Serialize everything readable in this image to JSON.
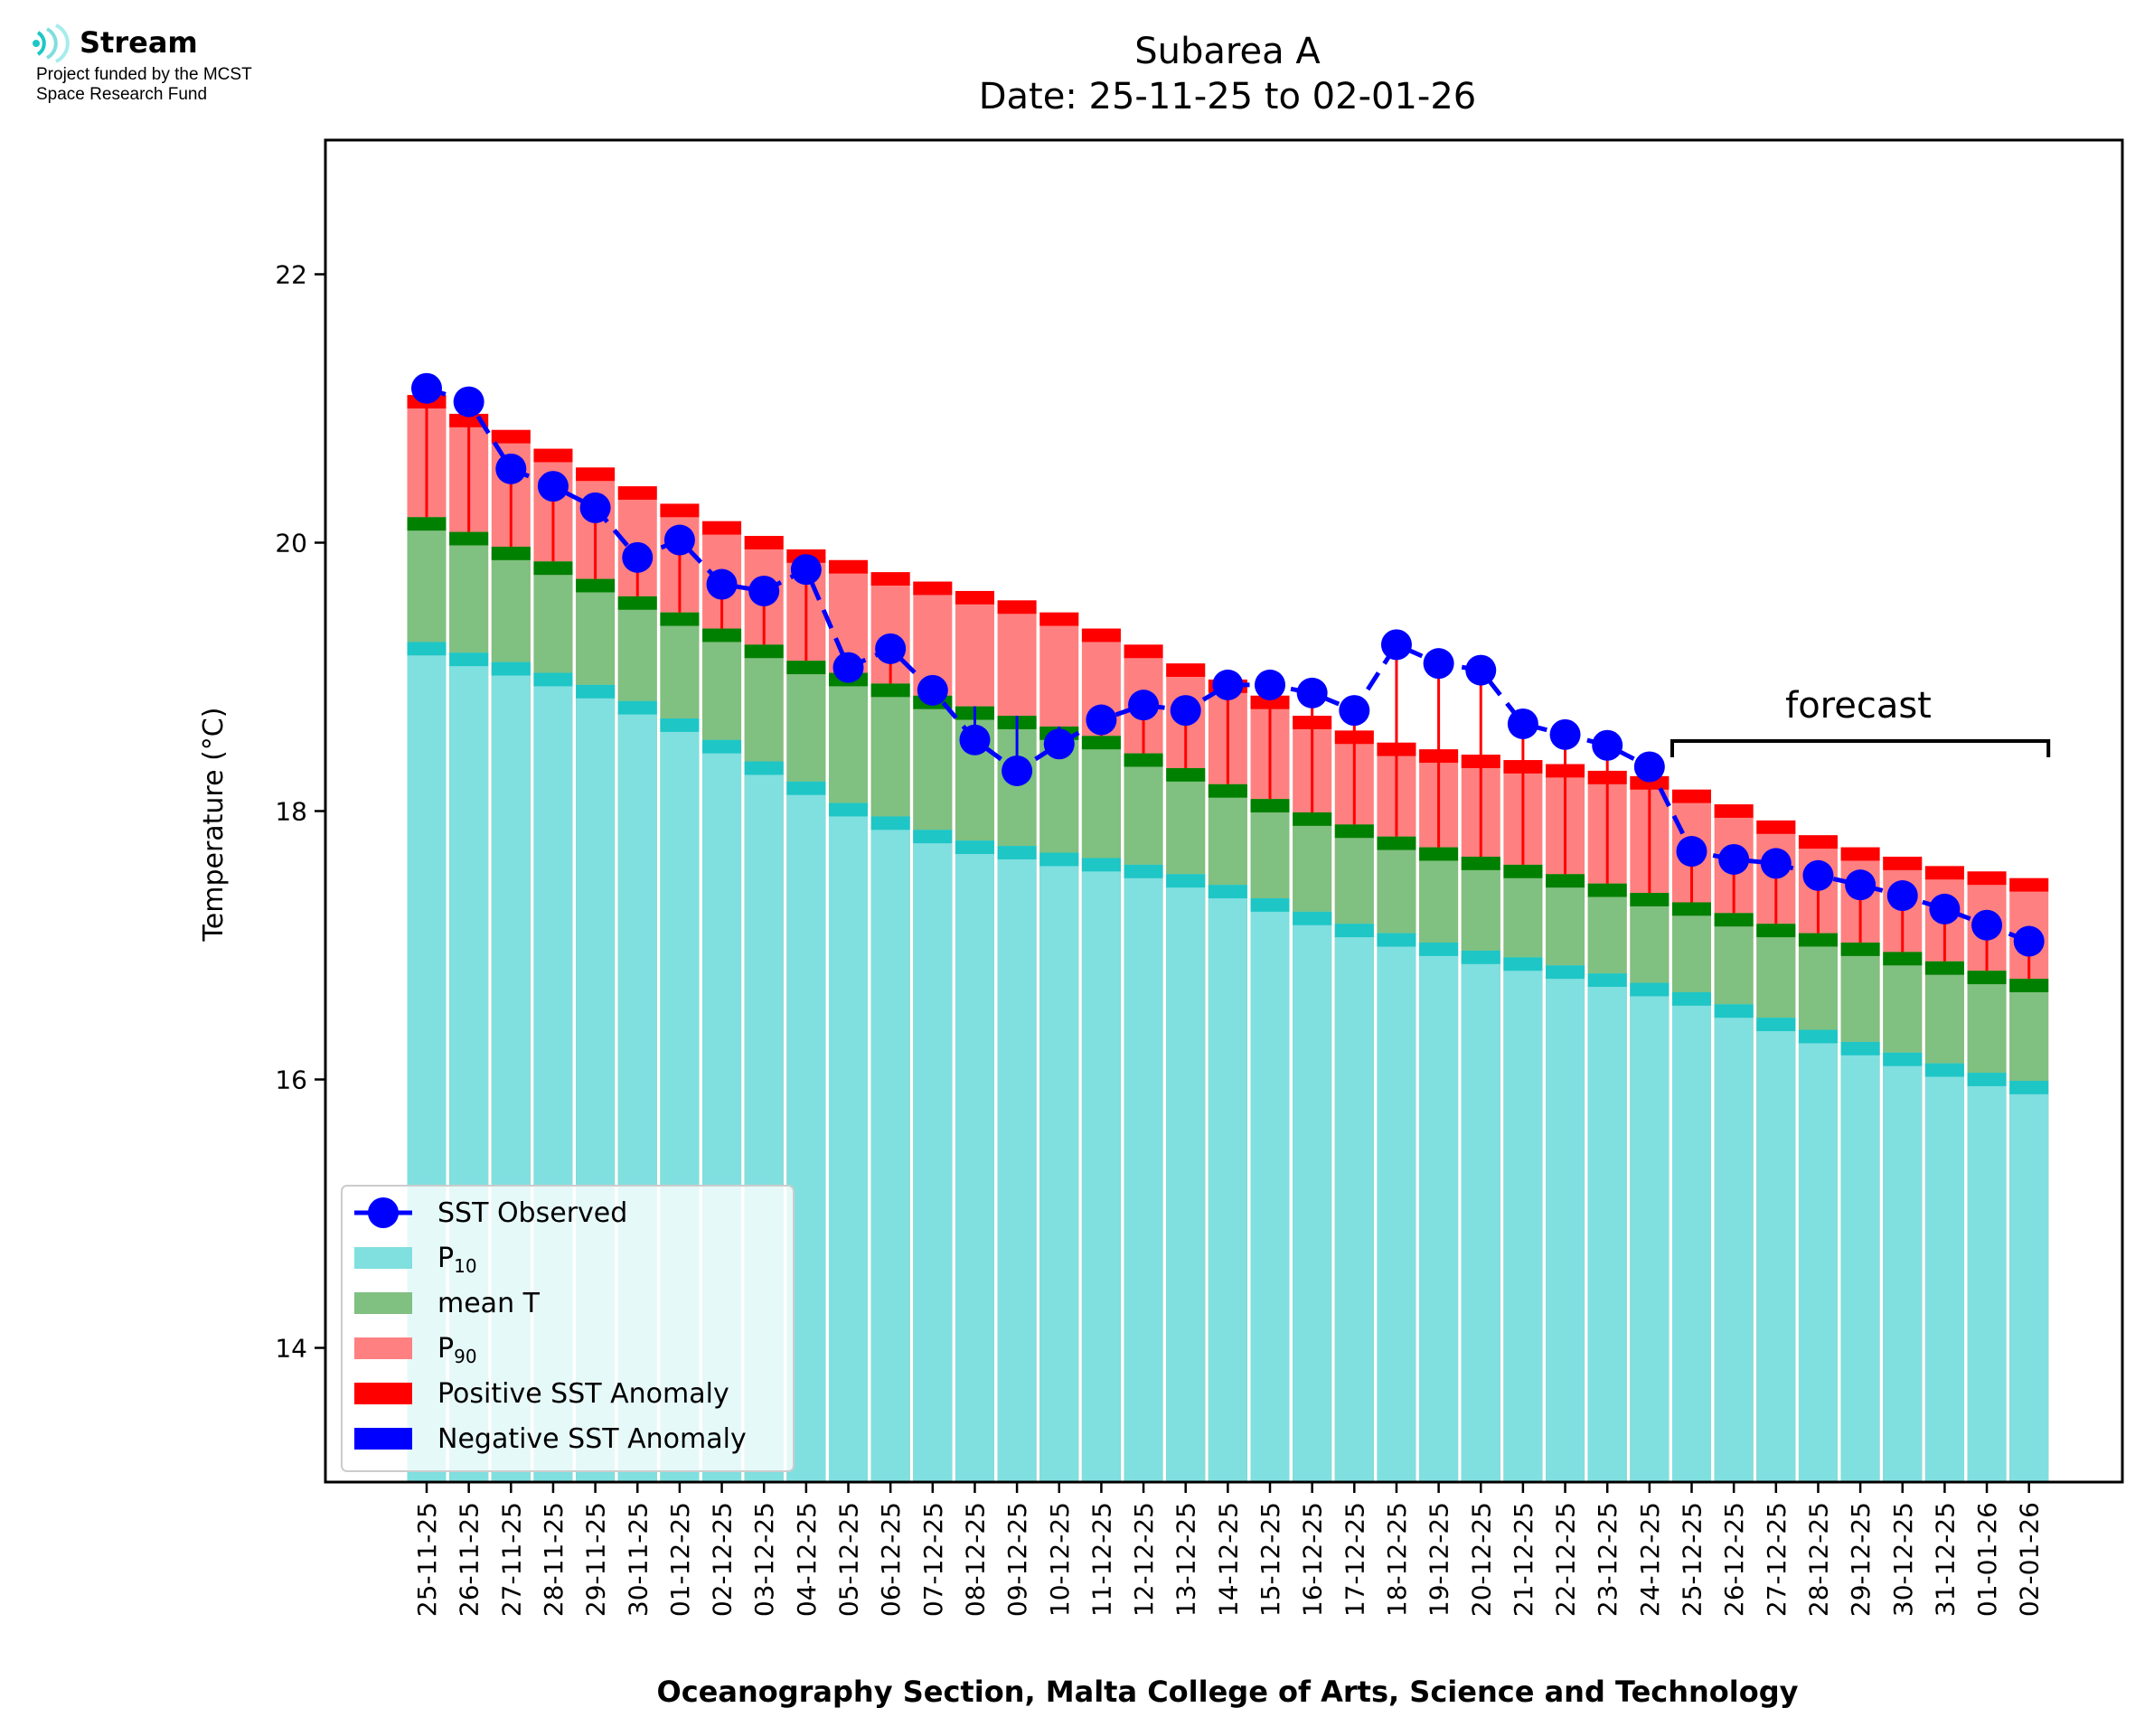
{
  "logo": {
    "name": "Stream",
    "line1": "Project funded by the MCST",
    "line2": "Space Research Fund",
    "color": "#7fdede"
  },
  "chart_data": {
    "type": "bar",
    "title": "Subarea A",
    "subtitle": "Date: 25-11-25 to 02-01-26",
    "xlabel": "Oceanography Section, Malta College of Arts, Science and Technology",
    "ylabel": "Temperature (°C)",
    "ylim": [
      13.0,
      23.0
    ],
    "yticks": [
      14,
      16,
      18,
      20,
      22
    ],
    "categories": [
      "25-11-25",
      "26-11-25",
      "27-11-25",
      "28-11-25",
      "29-11-25",
      "30-11-25",
      "01-12-25",
      "02-12-25",
      "03-12-25",
      "04-12-25",
      "05-12-25",
      "06-12-25",
      "07-12-25",
      "08-12-25",
      "09-12-25",
      "10-12-25",
      "11-12-25",
      "12-12-25",
      "13-12-25",
      "14-12-25",
      "15-12-25",
      "16-12-25",
      "17-12-25",
      "18-12-25",
      "19-12-25",
      "20-12-25",
      "21-12-25",
      "22-12-25",
      "23-12-25",
      "24-12-25",
      "25-12-25",
      "26-12-25",
      "27-12-25",
      "28-12-25",
      "29-12-25",
      "30-12-25",
      "31-12-25",
      "01-01-26",
      "02-01-26"
    ],
    "series": [
      {
        "name": "SST Observed",
        "style": "line-marker",
        "color": "#0000ff",
        "values": [
          21.15,
          21.05,
          20.55,
          20.42,
          20.26,
          19.89,
          20.02,
          19.69,
          19.64,
          19.8,
          19.07,
          19.21,
          18.9,
          18.53,
          18.3,
          18.5,
          18.68,
          18.79,
          18.75,
          18.94,
          18.94,
          18.88,
          18.75,
          19.24,
          19.1,
          19.05,
          18.65,
          18.57,
          18.49,
          18.33,
          17.7,
          17.64,
          17.61,
          17.52,
          17.45,
          17.37,
          17.27,
          17.15,
          17.03
        ]
      },
      {
        "name": "P10",
        "style": "bar",
        "color": "#80dfdf",
        "marker_color": "#1ec6c6",
        "values": [
          19.26,
          19.18,
          19.11,
          19.03,
          18.94,
          18.82,
          18.69,
          18.53,
          18.37,
          18.22,
          18.06,
          17.96,
          17.86,
          17.78,
          17.74,
          17.69,
          17.65,
          17.6,
          17.53,
          17.45,
          17.35,
          17.25,
          17.16,
          17.09,
          17.02,
          16.96,
          16.91,
          16.85,
          16.79,
          16.72,
          16.65,
          16.56,
          16.46,
          16.37,
          16.28,
          16.2,
          16.12,
          16.05,
          15.99
        ]
      },
      {
        "name": "mean T",
        "style": "bar",
        "color": "#80c080",
        "marker_color": "#008000",
        "values": [
          20.19,
          20.08,
          19.97,
          19.86,
          19.73,
          19.6,
          19.48,
          19.36,
          19.24,
          19.12,
          19.03,
          18.95,
          18.86,
          18.78,
          18.71,
          18.63,
          18.56,
          18.43,
          18.32,
          18.2,
          18.09,
          17.99,
          17.9,
          17.81,
          17.73,
          17.66,
          17.6,
          17.53,
          17.46,
          17.39,
          17.32,
          17.24,
          17.16,
          17.09,
          17.02,
          16.95,
          16.88,
          16.81,
          16.75
        ]
      },
      {
        "name": "P90",
        "style": "bar",
        "color": "#ff8080",
        "marker_color": "#ff0000",
        "values": [
          21.1,
          20.96,
          20.84,
          20.7,
          20.56,
          20.42,
          20.29,
          20.16,
          20.05,
          19.95,
          19.87,
          19.78,
          19.71,
          19.64,
          19.57,
          19.48,
          19.36,
          19.24,
          19.1,
          18.98,
          18.86,
          18.71,
          18.6,
          18.51,
          18.46,
          18.42,
          18.38,
          18.35,
          18.3,
          18.26,
          18.16,
          18.05,
          17.93,
          17.82,
          17.73,
          17.66,
          17.59,
          17.55,
          17.5
        ]
      }
    ],
    "anomaly_legend": [
      {
        "name": "Positive SST Anomaly",
        "color": "#ff0000"
      },
      {
        "name": "Negative SST Anomaly",
        "color": "#0000ff"
      }
    ],
    "legend_placement": "lower-left",
    "grid": false,
    "annotation": {
      "text": "forecast",
      "from": "25-12-25",
      "to": "02-01-26"
    }
  }
}
